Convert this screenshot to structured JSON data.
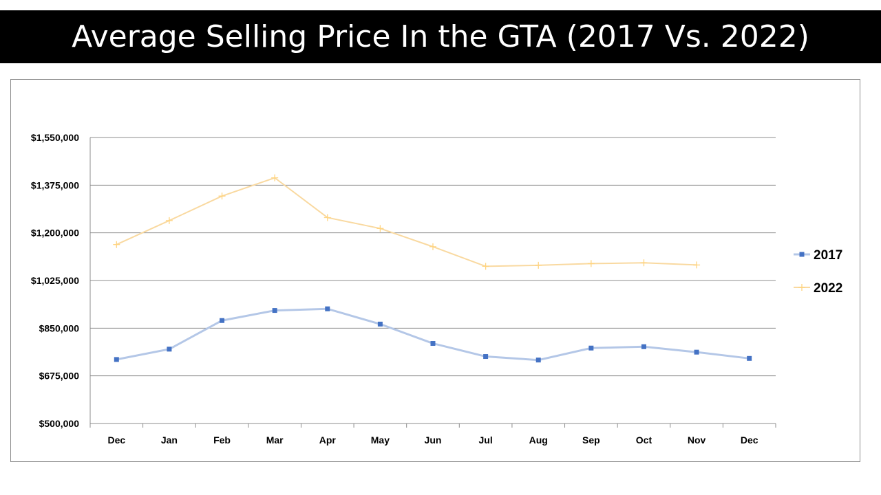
{
  "chart_data": {
    "type": "line",
    "title": "Average Selling Price In the GTA (2017 Vs. 2022)",
    "categories": [
      "Dec",
      "Jan",
      "Feb",
      "Mar",
      "Apr",
      "May",
      "Jun",
      "Jul",
      "Aug",
      "Sep",
      "Oct",
      "Nov",
      "Dec"
    ],
    "ylim": [
      500000,
      1550000
    ],
    "yticks": [
      500000,
      675000,
      850000,
      1025000,
      1200000,
      1375000,
      1550000
    ],
    "ytick_labels": [
      "$500,000",
      "$675,000",
      "$850,000",
      "$1,025,000",
      "$1,200,000",
      "$1,375,000",
      "$1,550,000"
    ],
    "grid": true,
    "legend_position": "right",
    "series": [
      {
        "name": "2017",
        "color": "#4472c4",
        "line_color": "#b4c7e7",
        "marker": "square",
        "values": [
          735000,
          773000,
          878000,
          915000,
          921000,
          865000,
          794000,
          746000,
          733000,
          777000,
          782000,
          762000,
          739000
        ]
      },
      {
        "name": "2022",
        "color": "#ffd480",
        "line_color": "#f9d9a0",
        "marker": "plus",
        "values": [
          1157000,
          1245000,
          1335000,
          1402000,
          1256000,
          1216000,
          1149000,
          1077000,
          1081000,
          1087000,
          1090000,
          1082000,
          null
        ]
      }
    ]
  }
}
